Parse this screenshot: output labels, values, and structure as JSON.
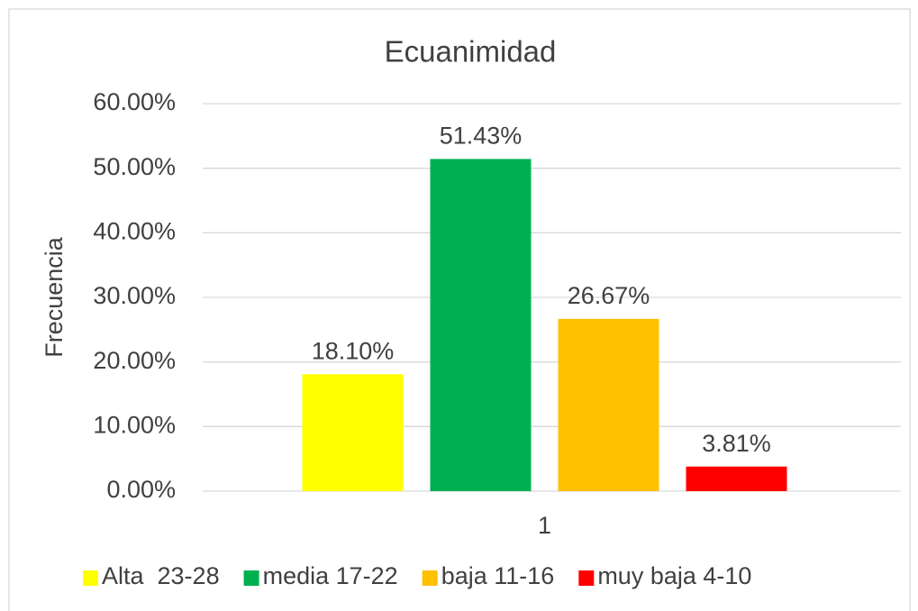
{
  "chart_data": {
    "type": "bar",
    "title": "Ecuanimidad",
    "y_label": "Frecuencia",
    "categories": [
      "1"
    ],
    "series": [
      {
        "name": "Alta  23-28",
        "color": "#ffff00",
        "values": [
          18.1
        ],
        "value_labels": [
          "18.10%"
        ]
      },
      {
        "name": "media 17-22",
        "color": "#00b050",
        "values": [
          51.43
        ],
        "value_labels": [
          "51.43%"
        ]
      },
      {
        "name": "baja 11-16",
        "color": "#ffc000",
        "values": [
          26.67
        ],
        "value_labels": [
          "26.67%"
        ]
      },
      {
        "name": "muy baja 4-10",
        "color": "#ff0000",
        "values": [
          3.81
        ],
        "value_labels": [
          "3.81%"
        ]
      }
    ],
    "ylim": [
      0,
      60
    ],
    "yticks": [
      {
        "value": 0,
        "label": "0.00%"
      },
      {
        "value": 10,
        "label": "10.00%"
      },
      {
        "value": 20,
        "label": "20.00%"
      },
      {
        "value": 30,
        "label": "30.00%"
      },
      {
        "value": 40,
        "label": "40.00%"
      },
      {
        "value": 50,
        "label": "50.00%"
      },
      {
        "value": 60,
        "label": "60.00%"
      }
    ],
    "grid": true,
    "legend": "bottom"
  }
}
